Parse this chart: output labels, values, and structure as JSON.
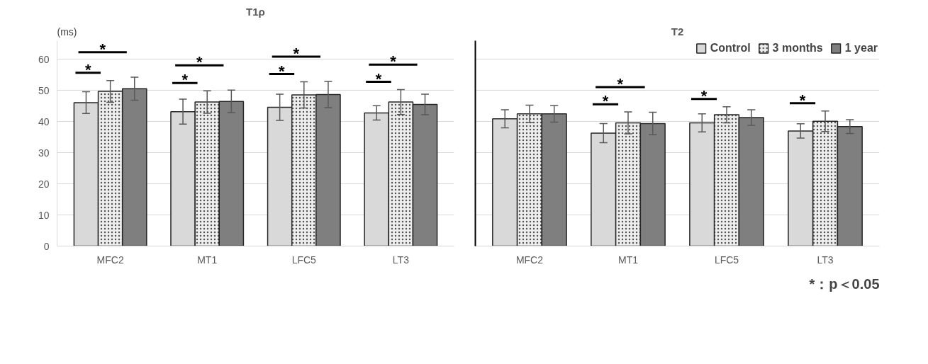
{
  "chart_data": [
    {
      "type": "bar",
      "title": "T1ρ",
      "ylabel": "(ms)",
      "categories": [
        "MFC2",
        "MT1",
        "LFC5",
        "LT3"
      ],
      "ylim": [
        0,
        66
      ],
      "yticks": [
        0,
        10,
        20,
        30,
        40,
        50,
        60
      ],
      "grid": "y",
      "series": [
        {
          "color": "#d9d9d9",
          "values": [
            46.1,
            43.2,
            44.6,
            42.8
          ],
          "errors": [
            3.5,
            4.0,
            4.2,
            2.3
          ]
        },
        {
          "color": "#eeeeee",
          "values": [
            49.7,
            46.3,
            48.6,
            46.3
          ],
          "errors": [
            3.5,
            3.6,
            4.2,
            4.0
          ]
        },
        {
          "color": "#7f7f7f",
          "values": [
            50.6,
            46.5,
            48.7,
            45.5
          ],
          "errors": [
            3.7,
            3.6,
            4.2,
            3.3
          ]
        }
      ],
      "annotations": [
        "*",
        "*",
        "*",
        "*",
        "*",
        "*",
        "*",
        "*"
      ]
    },
    {
      "type": "bar",
      "title": "T2",
      "categories": [
        "MFC2",
        "MT1",
        "LFC5",
        "LT3"
      ],
      "ylim": [
        0,
        66
      ],
      "yticks": [
        0,
        10,
        20,
        30,
        40,
        50,
        60
      ],
      "grid": "y",
      "tick_labels": "x",
      "legend": "top",
      "series": [
        {
          "name": "Control",
          "color": "#d9d9d9",
          "values": [
            40.9,
            36.3,
            39.6,
            37.0
          ],
          "errors": [
            2.9,
            3.1,
            2.9,
            2.3
          ]
        },
        {
          "name": "3 months",
          "color": "#eeeeee",
          "values": [
            42.5,
            39.6,
            42.2,
            40.1
          ],
          "errors": [
            2.8,
            3.5,
            2.6,
            3.3
          ]
        },
        {
          "name": "1 year",
          "color": "#7f7f7f",
          "values": [
            42.5,
            39.4,
            41.3,
            38.4
          ],
          "errors": [
            2.7,
            3.6,
            2.5,
            2.2
          ]
        }
      ],
      "annotations": [
        "*",
        "*",
        "*",
        "*",
        "*：p＜0.05"
      ]
    }
  ]
}
